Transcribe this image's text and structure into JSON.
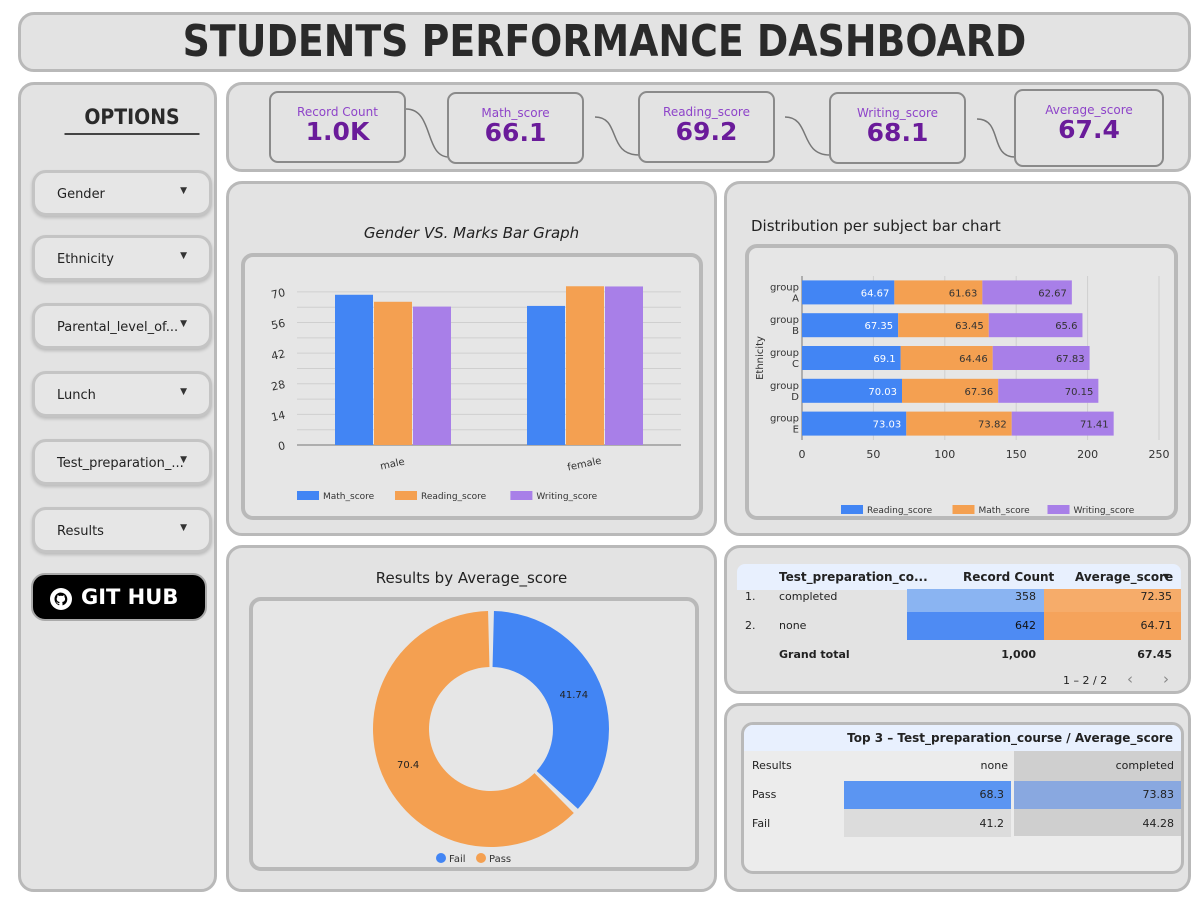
{
  "header": {
    "title": "STUDENTS PERFORMANCE DASHBOARD"
  },
  "sidebar": {
    "title": "OPTIONS",
    "filters": [
      {
        "label": "Gender"
      },
      {
        "label": "Ethnicity"
      },
      {
        "label": "Parental_level_of..."
      },
      {
        "label": "Lunch"
      },
      {
        "label": "Test_preparation_..."
      },
      {
        "label": "Results"
      }
    ],
    "github_label": "GIT HUB"
  },
  "kpis": [
    {
      "label": "Record Count",
      "value": "1.0K"
    },
    {
      "label": "Math_score",
      "value": "66.1"
    },
    {
      "label": "Reading_score",
      "value": "69.2"
    },
    {
      "label": "Writing_score",
      "value": "68.1"
    },
    {
      "label": "Average_score",
      "value": "67.4"
    }
  ],
  "gender_chart": {
    "title": "Gender VS. Marks Bar Graph",
    "legend": [
      "Math_score",
      "Reading_score",
      "Writing_score"
    ],
    "colors": [
      "#4285f4",
      "#f4a051",
      "#a87fe8"
    ]
  },
  "dist_chart": {
    "title": "Distribution per subject bar chart",
    "ylabel": "Ethnicity",
    "legend": [
      "Reading_score",
      "Math_score",
      "Writing_score"
    ],
    "colors": [
      "#4285f4",
      "#f4a051",
      "#a87fe8"
    ]
  },
  "results_chart": {
    "title": "Results by Average_score",
    "legend": [
      "Fail",
      "Pass"
    ],
    "colors": [
      "#4285f4",
      "#f4a051"
    ]
  },
  "chart_data": [
    {
      "type": "bar",
      "title": "Gender VS. Marks Bar Graph",
      "categories": [
        "male",
        "female"
      ],
      "series": [
        {
          "name": "Math_score",
          "values": [
            68.7,
            63.6
          ]
        },
        {
          "name": "Reading_score",
          "values": [
            65.5,
            72.6
          ]
        },
        {
          "name": "Writing_score",
          "values": [
            63.3,
            72.5
          ]
        }
      ],
      "yticks": [
        "0",
        "14",
        "28",
        "42",
        "56",
        "70"
      ],
      "ylim": [
        0,
        75
      ],
      "grid": true,
      "legend_position": "bottom"
    },
    {
      "type": "bar",
      "orientation": "horizontal",
      "stacked": true,
      "title": "Distribution per subject bar chart",
      "ylabel": "Ethnicity",
      "categories": [
        [
          "group",
          "A"
        ],
        [
          "group",
          "B"
        ],
        [
          "group",
          "C"
        ],
        [
          "group",
          "D"
        ],
        [
          "group",
          "E"
        ]
      ],
      "series": [
        {
          "name": "Reading_score",
          "values": [
            64.67,
            67.35,
            69.1,
            70.03,
            73.03
          ],
          "labels": [
            "64.67",
            "67.35",
            "69.1",
            "70.03",
            "73.03"
          ]
        },
        {
          "name": "Math_score",
          "values": [
            61.63,
            63.45,
            64.46,
            67.36,
            73.82
          ],
          "labels": [
            "61.63",
            "63.45",
            "64.46",
            "67.36",
            "73.82"
          ]
        },
        {
          "name": "Writing_score",
          "values": [
            62.67,
            65.6,
            67.83,
            70.15,
            71.41
          ],
          "labels": [
            "62.67",
            "65.6",
            "67.83",
            "70.15",
            "71.41"
          ]
        }
      ],
      "xticks": [
        "0",
        "50",
        "100",
        "150",
        "200",
        "250"
      ],
      "xlim": [
        0,
        250
      ],
      "grid": true,
      "legend_position": "bottom"
    },
    {
      "type": "pie",
      "donut": true,
      "title": "Results by Average_score",
      "slices": [
        {
          "name": "Fail",
          "value": 41.74,
          "label": "41.74"
        },
        {
          "name": "Pass",
          "value": 70.4,
          "label": "70.4"
        }
      ],
      "legend_position": "bottom"
    }
  ],
  "prep_table": {
    "headers": [
      "Test_preparation_co...",
      "Record Count",
      "Average_score"
    ],
    "sort_icon": "caret-down-icon",
    "rows": [
      {
        "index": "1.",
        "name": "completed",
        "count": "358",
        "avg": "72.35"
      },
      {
        "index": "2.",
        "name": "none",
        "count": "642",
        "avg": "64.71"
      }
    ],
    "total": {
      "label": "Grand total",
      "count": "1,000",
      "avg": "67.45"
    },
    "pagination": "1 – 2 / 2"
  },
  "top3_table": {
    "title": "Top 3 – Test_preparation_course / Average_score",
    "corner": "Results",
    "cols": [
      "none",
      "completed"
    ],
    "rows": [
      {
        "label": "Pass",
        "values": [
          "68.3",
          "73.83"
        ]
      },
      {
        "label": "Fail",
        "values": [
          "41.2",
          "44.28"
        ]
      }
    ]
  }
}
